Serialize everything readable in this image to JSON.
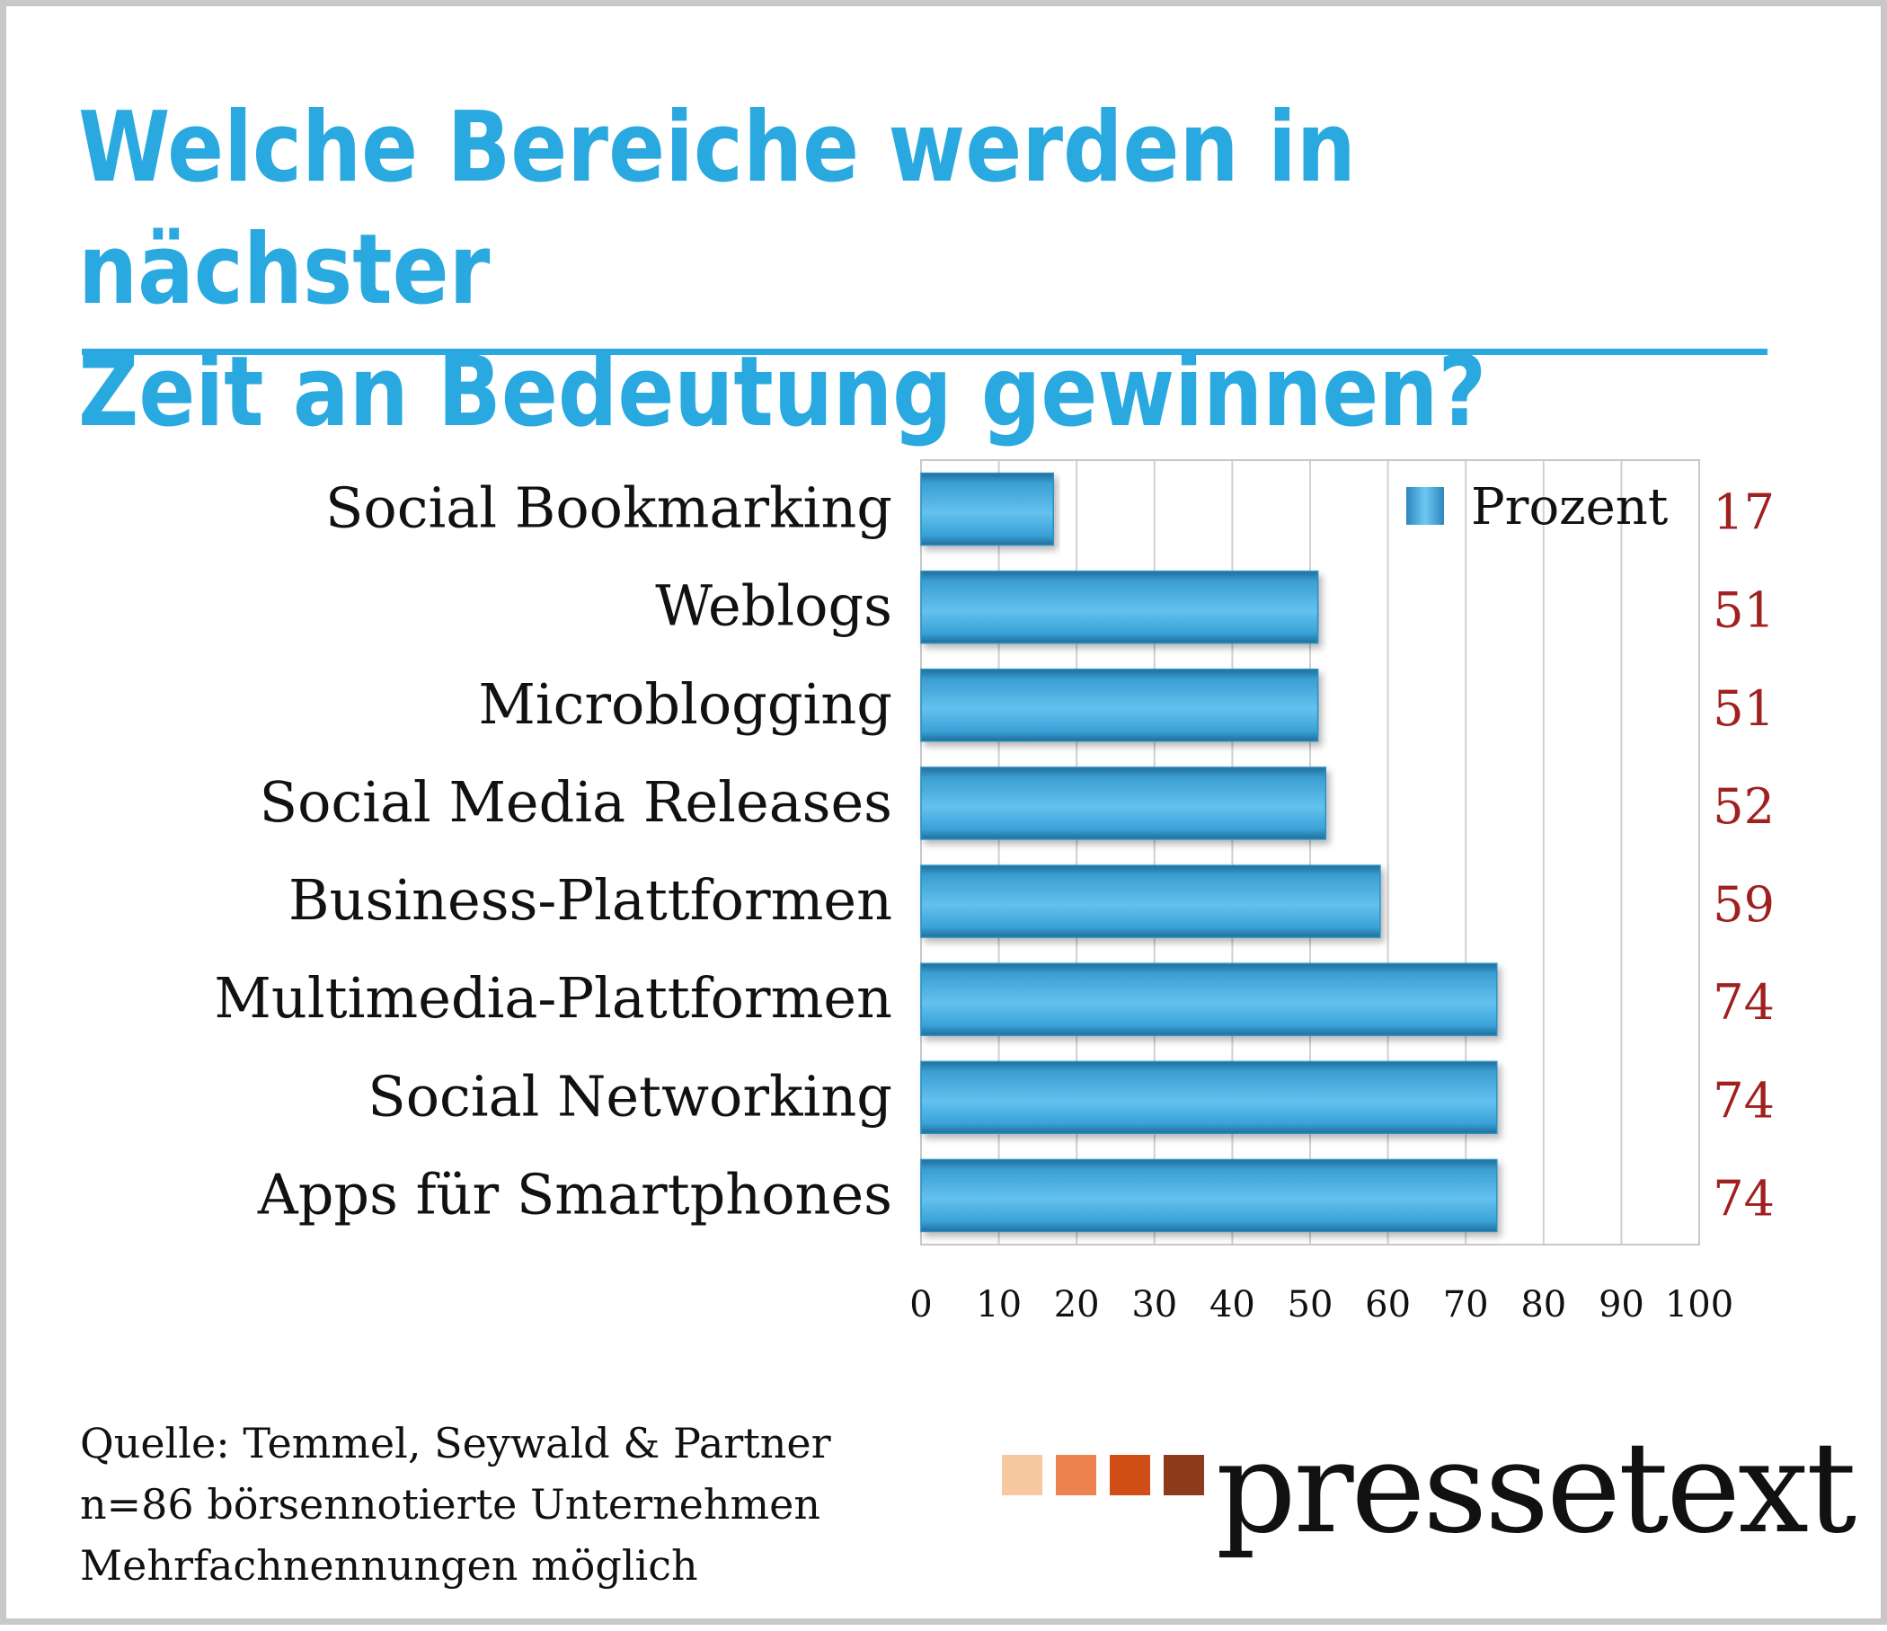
{
  "header": {
    "title_line1": "Welche Bereiche werden in nächster",
    "title_line2": "Zeit an Bedeutung gewinnen?",
    "accent_color": "#2aa9e0"
  },
  "chart_data": {
    "type": "bar",
    "orientation": "horizontal",
    "categories": [
      "Social Bookmarking",
      "Weblogs",
      "Microblogging",
      "Social Media Releases",
      "Business-Plattformen",
      "Multimedia-Plattformen",
      "Social Networking",
      "Apps für Smartphones"
    ],
    "series": [
      {
        "name": "Prozent",
        "values": [
          17,
          51,
          51,
          52,
          59,
          74,
          74,
          74
        ],
        "color": "#41abe0"
      }
    ],
    "value_labels": [
      "17",
      "51",
      "51",
      "52",
      "59",
      "74",
      "74",
      "74"
    ],
    "xlim": [
      0,
      100
    ],
    "xticks": [
      0,
      10,
      20,
      30,
      40,
      50,
      60,
      70,
      80,
      90,
      100
    ],
    "xtick_labels": [
      "0",
      "10",
      "20",
      "30",
      "40",
      "50",
      "60",
      "70",
      "80",
      "90",
      "100"
    ],
    "grid": true,
    "legend_position": "top-right",
    "value_label_color": "#a02020"
  },
  "footer": {
    "source_line1": "Quelle: Temmel, Seywald & Partner",
    "source_line2": "n=86 börsennotierte Unternehmen",
    "source_line3": "Mehrfachnennungen möglich"
  },
  "logo": {
    "text": "pressetext",
    "square_colors": [
      "#f8c9a0",
      "#ec8250",
      "#d04e16",
      "#8e3a1c"
    ]
  }
}
